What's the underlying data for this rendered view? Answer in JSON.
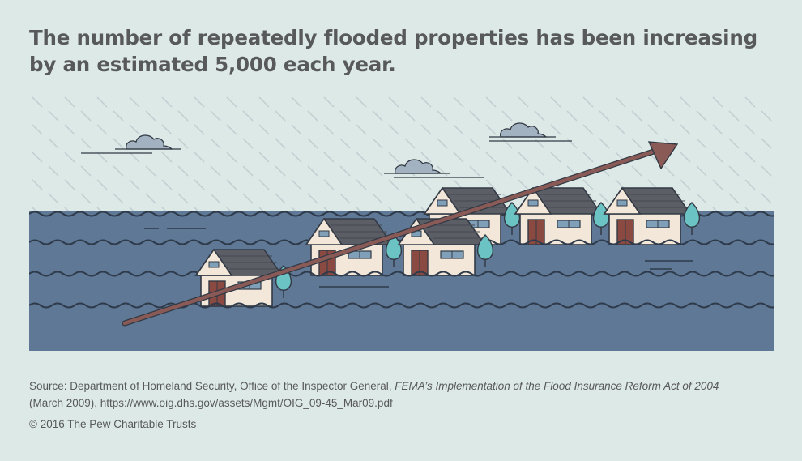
{
  "headline": {
    "line1": "The number of repeatedly flooded properties has been increasing",
    "line2": "by an estimated 5,000 each year."
  },
  "illustration": {
    "icons": [
      "rain-icon",
      "cloud-icon",
      "house-icon",
      "tree-icon",
      "trend-arrow-icon",
      "water-wave-icon"
    ],
    "colors": {
      "background": "#dde9e6",
      "water": "#5e7896",
      "wave": "#2f3a4a",
      "arrow": "#8a5a56",
      "house_wall": "#f2e7d8",
      "roof": "#5c5e66",
      "door": "#8a4a42",
      "window": "#7fa0b8",
      "tree": "#6cc3c4",
      "cloud": "#a3b2c1",
      "rain": "#c3d0d3"
    }
  },
  "source": {
    "prefix": "Source: Department of Homeland Security, Office of the Inspector General, ",
    "title": "FEMA’s Implementation of the Flood Insurance Reform Act of 2004",
    "suffix": "(March 2009), https://www.oig.dhs.gov/assets/Mgmt/OIG_09-45_Mar09.pdf"
  },
  "copyright": "© 2016 The Pew Charitable Trusts"
}
